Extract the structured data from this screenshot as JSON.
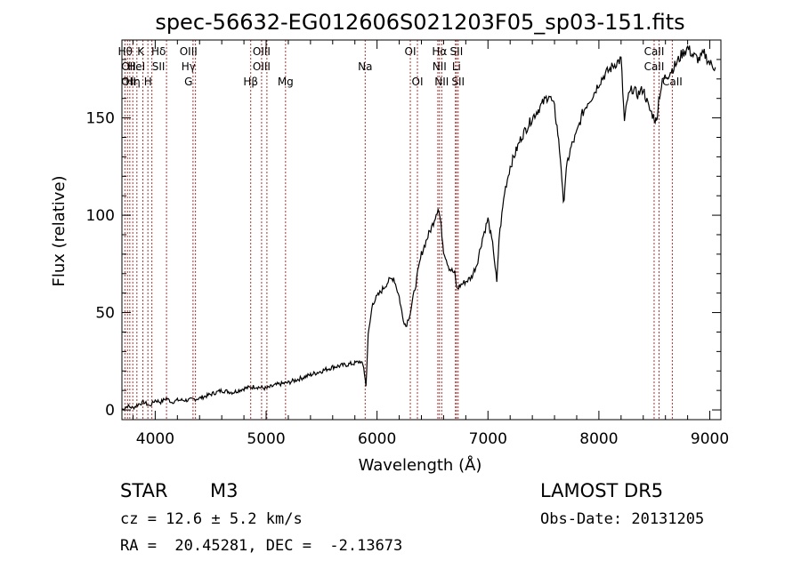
{
  "chart_data": {
    "type": "line",
    "title": "spec-56632-EG012606S021203F05_sp03-151.fits",
    "xlabel": "Wavelength (Å)",
    "ylabel": "Flux (relative)",
    "xlim": [
      3700,
      9100
    ],
    "ylim": [
      -5,
      190
    ],
    "x_ticks": [
      4000,
      5000,
      6000,
      7000,
      8000,
      9000
    ],
    "y_ticks": [
      0,
      50,
      100,
      150
    ],
    "grid": false,
    "series": [
      {
        "color": "#000000",
        "x": [
          3700,
          3750,
          3800,
          3850,
          3900,
          3950,
          4000,
          4050,
          4100,
          4150,
          4200,
          4300,
          4400,
          4500,
          4600,
          4700,
          4800,
          4900,
          5000,
          5100,
          5200,
          5300,
          5400,
          5500,
          5600,
          5700,
          5800,
          5850,
          5880,
          5900,
          5920,
          5960,
          6000,
          6050,
          6100,
          6150,
          6200,
          6230,
          6260,
          6300,
          6350,
          6400,
          6450,
          6500,
          6550,
          6570,
          6600,
          6650,
          6700,
          6720,
          6750,
          6800,
          6850,
          6900,
          6950,
          7000,
          7050,
          7080,
          7100,
          7150,
          7200,
          7300,
          7400,
          7500,
          7550,
          7600,
          7630,
          7660,
          7680,
          7700,
          7720,
          7750,
          7800,
          7850,
          7900,
          7950,
          8000,
          8050,
          8100,
          8150,
          8200,
          8230,
          8260,
          8300,
          8350,
          8400,
          8450,
          8500,
          8520,
          8540,
          8580,
          8620,
          8660,
          8700,
          8750,
          8800,
          8850,
          8900,
          8950,
          9000,
          9050
        ],
        "y": [
          0,
          2,
          1,
          3,
          4,
          2,
          5,
          4,
          6,
          4,
          5,
          5,
          6,
          8,
          10,
          9,
          11,
          12,
          11,
          13,
          14,
          16,
          18,
          20,
          22,
          23,
          24,
          25,
          22,
          12,
          38,
          55,
          58,
          62,
          66,
          68,
          58,
          48,
          43,
          50,
          65,
          80,
          88,
          95,
          104,
          98,
          82,
          73,
          70,
          62,
          64,
          66,
          68,
          75,
          88,
          98,
          82,
          65,
          88,
          112,
          125,
          140,
          150,
          158,
          162,
          155,
          142,
          125,
          105,
          120,
          128,
          135,
          142,
          152,
          158,
          162,
          168,
          172,
          175,
          178,
          180,
          148,
          160,
          165,
          162,
          165,
          155,
          150,
          148,
          160,
          170,
          172,
          175,
          178,
          183,
          186,
          182,
          180,
          183,
          178,
          176
        ]
      }
    ],
    "line_labels": [
      {
        "wl": 3730,
        "text": "Hθ",
        "row": 0
      },
      {
        "wl": 3760,
        "text": "OII",
        "row": 1
      },
      {
        "wl": 3760,
        "text": "OII",
        "row": 2
      },
      {
        "wl": 3800,
        "text": "Hη",
        "row": 2
      },
      {
        "wl": 3830,
        "text": "HeI",
        "row": 1
      },
      {
        "wl": 3870,
        "text": "K",
        "row": 0
      },
      {
        "wl": 3935,
        "text": "H",
        "row": 2
      },
      {
        "wl": 4030,
        "text": "Hδ",
        "row": 0
      },
      {
        "wl": 4030,
        "text": "SII",
        "row": 1
      },
      {
        "wl": 4300,
        "text": "OIII",
        "row": 0
      },
      {
        "wl": 4300,
        "text": "Hγ",
        "row": 1
      },
      {
        "wl": 4300,
        "text": "G",
        "row": 2
      },
      {
        "wl": 4861,
        "text": "Hβ",
        "row": 2
      },
      {
        "wl": 4959,
        "text": "OIII",
        "row": 0
      },
      {
        "wl": 4959,
        "text": "OIII",
        "row": 1
      },
      {
        "wl": 5175,
        "text": "Mg",
        "row": 2
      },
      {
        "wl": 5893,
        "text": "Na",
        "row": 1
      },
      {
        "wl": 6300,
        "text": "OI",
        "row": 0
      },
      {
        "wl": 6364,
        "text": "OI",
        "row": 2
      },
      {
        "wl": 6563,
        "text": "Hα",
        "row": 0
      },
      {
        "wl": 6563,
        "text": "NII",
        "row": 1
      },
      {
        "wl": 6583,
        "text": "NII",
        "row": 2
      },
      {
        "wl": 6716,
        "text": "SII",
        "row": 0
      },
      {
        "wl": 6716,
        "text": "Li",
        "row": 1
      },
      {
        "wl": 6731,
        "text": "SII",
        "row": 2
      },
      {
        "wl": 8498,
        "text": "CaII",
        "row": 0
      },
      {
        "wl": 8498,
        "text": "CaII",
        "row": 1
      },
      {
        "wl": 8662,
        "text": "CaII",
        "row": 2
      }
    ],
    "line_positions": [
      3727,
      3750,
      3771,
      3798,
      3835,
      3889,
      3934,
      3970,
      4102,
      4341,
      4363,
      4861,
      4959,
      5007,
      5175,
      5893,
      6300,
      6364,
      6548,
      6563,
      6583,
      6707,
      6716,
      6731,
      8498,
      8542,
      8662
    ],
    "line_color": "#b03030"
  },
  "info": {
    "object_class": "STAR",
    "subclass": "M3",
    "survey": "LAMOST DR5",
    "cz": "cz = 12.6 ± 5.2 km/s",
    "obs_date": "Obs-Date: 20131205",
    "coords": "RA =  20.45281, DEC =  -2.13673"
  }
}
